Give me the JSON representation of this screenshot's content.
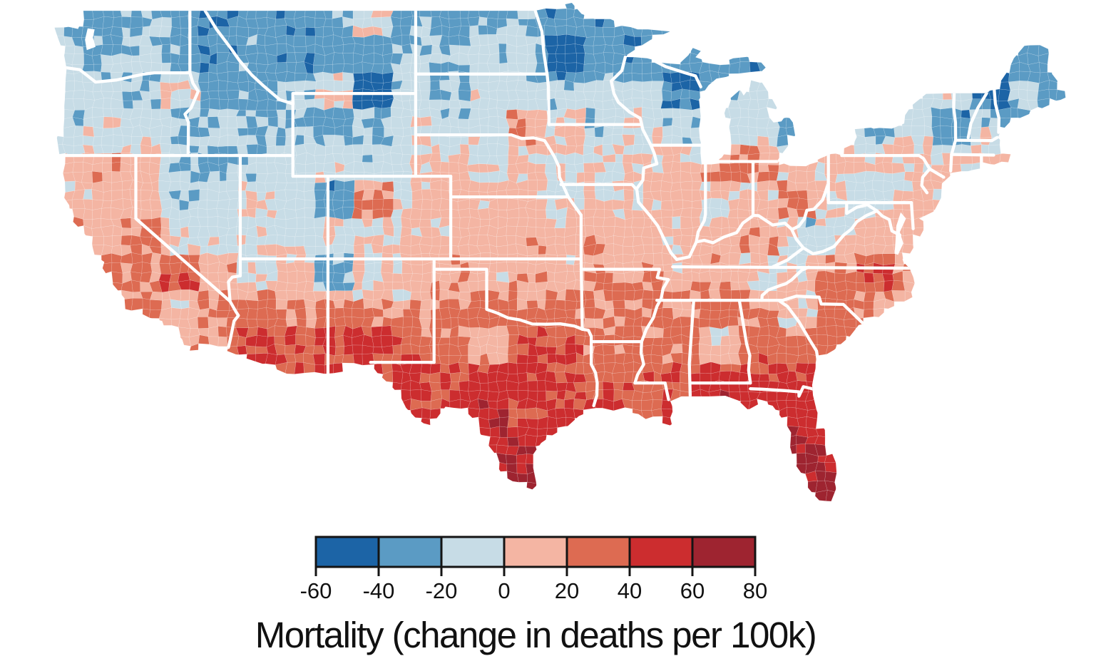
{
  "page": {
    "background": "#ffffff"
  },
  "map": {
    "kind": "county-level choropleth",
    "region": "Contiguous United States",
    "border_color": "#ffffff",
    "spatial_pattern": {
      "north": "negative values (blue) - mortality decline",
      "south": "positive values (red) - mortality increase",
      "notes": [
        "Upper Midwest (MN/WI/MI), Maine and northern New England show deepest blues",
        "Pacific Northwest, Mountain West and Northeast are light blue",
        "Transition band of pale pink across the central Plains and Ohio Valley",
        "California valleys and the Southwest pink to red",
        "Arizona, Texas, Oklahoma, the Deep South and Florida strongest reds",
        "Scattered dark-red counties in central Texas and west-central Florida",
        "Light-blue corridor along the central Appalachians"
      ]
    }
  },
  "legend": {
    "title": "Mortality (change in deaths per 100k)",
    "tick_labels": [
      "-60",
      "-40",
      "-20",
      "0",
      "20",
      "40",
      "60",
      "80"
    ],
    "bin_edges": [
      -60,
      -40,
      -20,
      0,
      20,
      40,
      60,
      80
    ],
    "colors": [
      "#1c64a6",
      "#5b9bc4",
      "#c7dce6",
      "#f4b5a3",
      "#dd6b52",
      "#cc2d2f",
      "#9e2430"
    ],
    "swatch_border_color": "#141414",
    "label_color": "#111111"
  },
  "chart_data": {
    "type": "heatmap",
    "subtype": "choropleth_map",
    "title": "Mortality (change in deaths per 100k)",
    "variable": "Change in deaths per 100,000 population",
    "geography": "US counties (lower 48 states)",
    "scale": {
      "min": -60,
      "max": 80,
      "bin_width": 20,
      "palette": "diverging blue-to-red",
      "legend_position": "bottom-center"
    },
    "bin_edges": [
      -60,
      -40,
      -20,
      0,
      20,
      40,
      60,
      80
    ],
    "bin_colors": [
      "#1c64a6",
      "#5b9bc4",
      "#c7dce6",
      "#f4b5a3",
      "#dd6b52",
      "#cc2d2f",
      "#9e2430"
    ],
    "regional_estimates": [
      {
        "region": "Northern Minnesota / Wisconsin / Michigan UP",
        "approx_change": -35
      },
      {
        "region": "Maine and northern New England",
        "approx_change": -30
      },
      {
        "region": "Pacific Northwest (WA/OR/ID)",
        "approx_change": -15
      },
      {
        "region": "Northern Rockies and Plains (MT/WY/ND/SD)",
        "approx_change": -15
      },
      {
        "region": "New York / Pennsylvania",
        "approx_change": -12
      },
      {
        "region": "Central Appalachians (WV, eastern KY)",
        "approx_change": -8
      },
      {
        "region": "Central Plains and Corn Belt (NE/IA/IL/IN/OH)",
        "approx_change": 8
      },
      {
        "region": "California (Central Valley, south coast)",
        "approx_change": 15
      },
      {
        "region": "Mid-South (MO/KY/TN/AR)",
        "approx_change": 25
      },
      {
        "region": "Southwest deserts (AZ/NM)",
        "approx_change": 30
      },
      {
        "region": "Carolinas and coastal Southeast",
        "approx_change": 30
      },
      {
        "region": "Deep South (LA/MS/AL/GA)",
        "approx_change": 40
      },
      {
        "region": "Texas and Oklahoma",
        "approx_change": 45
      },
      {
        "region": "Florida",
        "approx_change": 50
      },
      {
        "region": "Darkest counties (central TX, west FL)",
        "approx_change": 70
      }
    ]
  }
}
